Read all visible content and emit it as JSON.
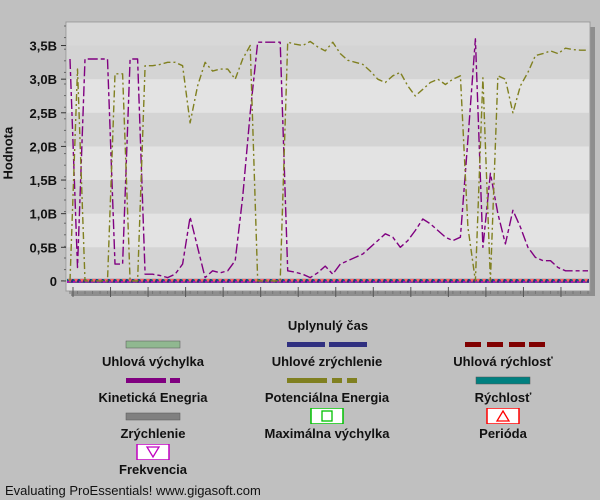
{
  "chart_data": {
    "type": "line",
    "ylabel": "Hodnota",
    "xlabel": "Uplynulý čas",
    "ylim": [
      -0.15,
      3.85
    ],
    "yticks": [
      0,
      0.5,
      1.0,
      1.5,
      2.0,
      2.5,
      3.0,
      3.5
    ],
    "ytick_labels": [
      "0",
      "0,5B",
      "1,0B",
      "1,5B",
      "2,0B",
      "2,5B",
      "3,0B",
      "3,5B"
    ],
    "y_unit": "billions",
    "x_points": 70,
    "grid": "horizontal bands",
    "series": [
      {
        "name": "Kinetická Enegria",
        "color": "#800080",
        "dash": "long-short",
        "values": [
          3.3,
          0.2,
          3.3,
          3.3,
          3.3,
          3.3,
          0.25,
          0.25,
          3.3,
          3.3,
          0.1,
          0.1,
          0.08,
          0.05,
          0.1,
          0.25,
          0.95,
          0.5,
          0.05,
          0.15,
          0.12,
          0.15,
          0.3,
          1.25,
          2.5,
          3.55,
          3.55,
          3.55,
          3.55,
          0.15,
          0.13,
          0.1,
          0.05,
          0.12,
          0.22,
          0.1,
          0.25,
          0.3,
          0.35,
          0.4,
          0.5,
          0.6,
          0.7,
          0.65,
          0.5,
          0.6,
          0.75,
          0.92,
          0.85,
          0.75,
          0.65,
          0.6,
          0.65,
          2.1,
          3.6,
          0.5,
          1.6,
          1.0,
          0.55,
          1.05,
          0.8,
          0.5,
          0.35,
          0.3,
          0.3,
          0.2,
          0.15,
          0.15,
          0.15,
          0.15
        ]
      },
      {
        "name": "Potenciálna Energia",
        "color": "#808020",
        "dash": "dash-dot",
        "values": [
          0,
          3.15,
          0,
          0,
          0,
          0,
          3.08,
          3.08,
          0,
          0,
          3.2,
          3.2,
          3.22,
          3.25,
          3.25,
          3.2,
          2.35,
          2.9,
          3.25,
          3.12,
          3.15,
          3.15,
          3.0,
          3.3,
          3.5,
          0,
          0,
          0,
          0,
          3.55,
          3.52,
          3.5,
          3.56,
          3.48,
          3.42,
          3.55,
          3.38,
          3.28,
          3.25,
          3.22,
          3.12,
          3.0,
          2.95,
          3.05,
          3.1,
          2.9,
          2.75,
          2.85,
          2.95,
          3.0,
          2.92,
          3.0,
          3.05,
          0.8,
          0,
          3.02,
          0,
          3.05,
          3.0,
          2.5,
          2.9,
          3.1,
          3.35,
          3.38,
          3.42,
          3.38,
          3.46,
          3.44,
          3.43,
          3.43
        ]
      }
    ],
    "flat_series_value": 0
  },
  "legend": [
    {
      "name": "Uhlová výchylka",
      "symbol": "bar",
      "color": "#90b890"
    },
    {
      "name": "Uhlové zrýchlenie",
      "symbol": "dashed",
      "color": "#303080"
    },
    {
      "name": "Uhlová rýchlosť",
      "symbol": "dashed",
      "color": "#800000"
    },
    {
      "name": "Kinetická Enegria",
      "symbol": "dashed",
      "color": "#800080"
    },
    {
      "name": "Potenciálna Energia",
      "symbol": "dashed",
      "color": "#808020"
    },
    {
      "name": "Rýchlosť",
      "symbol": "bar",
      "color": "#008080"
    },
    {
      "name": "Zrýchlenie",
      "symbol": "bar",
      "color": "#808080"
    },
    {
      "name": "Maximálna výchylka",
      "symbol": "square",
      "color": "#00c000"
    },
    {
      "name": "Perióda",
      "symbol": "triangle-up",
      "color": "#ff0000"
    },
    {
      "name": "Frekvencia",
      "symbol": "triangle-down",
      "color": "#c000c0"
    }
  ],
  "footer": "Evaluating ProEssentials! www.gigasoft.com"
}
